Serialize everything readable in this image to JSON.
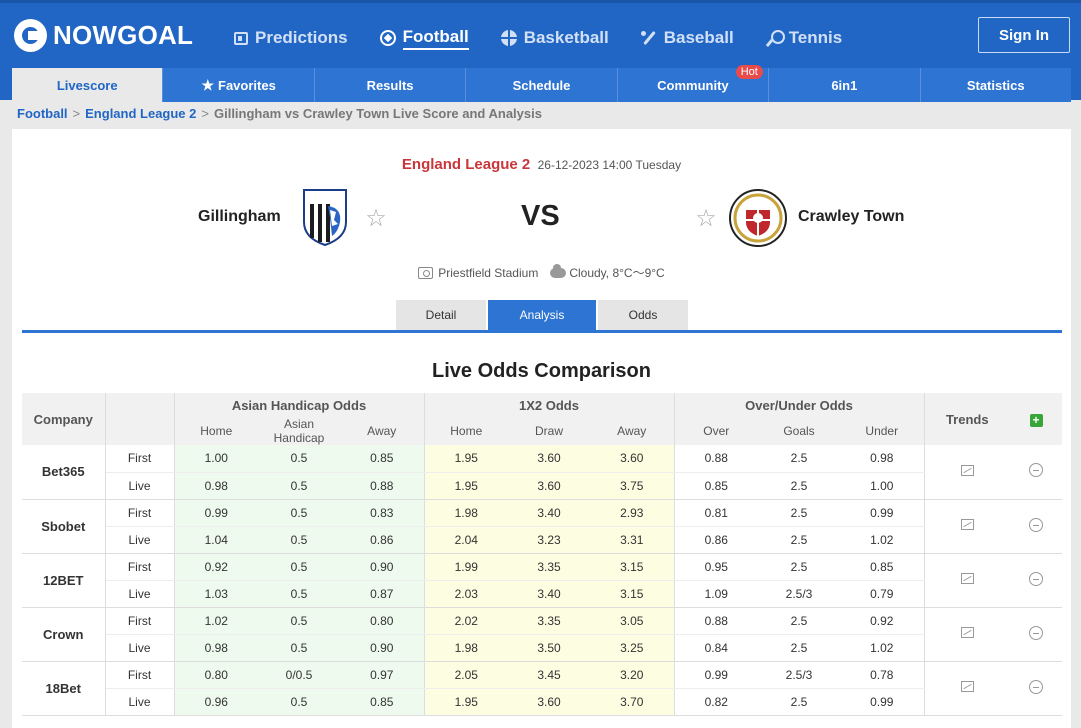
{
  "header": {
    "logo_text": "NOWGOAL",
    "nav": [
      {
        "label": "Predictions",
        "icon": "predictions-icon"
      },
      {
        "label": "Football",
        "icon": "football-icon",
        "active": true
      },
      {
        "label": "Basketball",
        "icon": "basketball-icon"
      },
      {
        "label": "Baseball",
        "icon": "baseball-icon"
      },
      {
        "label": "Tennis",
        "icon": "tennis-icon"
      }
    ],
    "sign_in": "Sign In"
  },
  "subnav": {
    "tabs": [
      "Livescore",
      "Favorites",
      "Results",
      "Schedule",
      "Community",
      "6in1",
      "Statistics"
    ],
    "hot_badge": "Hot"
  },
  "breadcrumb": {
    "items": [
      "Football",
      "England League 2"
    ],
    "current": "Gillingham vs Crawley Town Live Score and Analysis",
    "separator": ">"
  },
  "match": {
    "league": "England League 2",
    "datetime": "26-12-2023 14:00",
    "weekday": "Tuesday",
    "home": "Gillingham",
    "away": "Crawley Town",
    "vs": "VS",
    "venue": "Priestfield Stadium",
    "weather": "Cloudy, 8°C～9°C"
  },
  "detail_tabs": [
    "Detail",
    "Analysis",
    "Odds"
  ],
  "odds": {
    "title": "Live Odds Comparison",
    "headers": {
      "company": "Company",
      "asian": "Asian Handicap Odds",
      "x12": "1X2 Odds",
      "ou": "Over/Under Odds",
      "trends": "Trends",
      "add": "+",
      "asian_sub": [
        "Home",
        "Asian Handicap",
        "Away"
      ],
      "x12_sub": [
        "Home",
        "Draw",
        "Away"
      ],
      "ou_sub": [
        "Over",
        "Goals",
        "Under"
      ]
    },
    "rows": [
      {
        "company": "Bet365",
        "first": {
          "type": "First",
          "ah": [
            "1.00",
            "0.5",
            "0.85"
          ],
          "x12": [
            "1.95",
            "3.60",
            "3.60"
          ],
          "ou": [
            "0.88",
            "2.5",
            "0.98"
          ]
        },
        "live": {
          "type": "Live",
          "ah": [
            "0.98",
            "0.5",
            "0.88"
          ],
          "x12": [
            "1.95",
            "3.60",
            "3.75"
          ],
          "ou": [
            "0.85",
            "2.5",
            "1.00"
          ]
        }
      },
      {
        "company": "Sbobet",
        "first": {
          "type": "First",
          "ah": [
            "0.99",
            "0.5",
            "0.83"
          ],
          "x12": [
            "1.98",
            "3.40",
            "2.93"
          ],
          "ou": [
            "0.81",
            "2.5",
            "0.99"
          ]
        },
        "live": {
          "type": "Live",
          "ah": [
            "1.04",
            "0.5",
            "0.86"
          ],
          "x12": [
            "2.04",
            "3.23",
            "3.31"
          ],
          "ou": [
            "0.86",
            "2.5",
            "1.02"
          ]
        }
      },
      {
        "company": "12BET",
        "first": {
          "type": "First",
          "ah": [
            "0.92",
            "0.5",
            "0.90"
          ],
          "x12": [
            "1.99",
            "3.35",
            "3.15"
          ],
          "ou": [
            "0.95",
            "2.5",
            "0.85"
          ]
        },
        "live": {
          "type": "Live",
          "ah": [
            "1.03",
            "0.5",
            "0.87"
          ],
          "x12": [
            "2.03",
            "3.40",
            "3.15"
          ],
          "ou": [
            "1.09",
            "2.5/3",
            "0.79"
          ]
        }
      },
      {
        "company": "Crown",
        "first": {
          "type": "First",
          "ah": [
            "1.02",
            "0.5",
            "0.80"
          ],
          "x12": [
            "2.02",
            "3.35",
            "3.05"
          ],
          "ou": [
            "0.88",
            "2.5",
            "0.92"
          ]
        },
        "live": {
          "type": "Live",
          "ah": [
            "0.98",
            "0.5",
            "0.90"
          ],
          "x12": [
            "1.98",
            "3.50",
            "3.25"
          ],
          "ou": [
            "0.84",
            "2.5",
            "1.02"
          ]
        }
      },
      {
        "company": "18Bet",
        "first": {
          "type": "First",
          "ah": [
            "0.80",
            "0/0.5",
            "0.97"
          ],
          "x12": [
            "2.05",
            "3.45",
            "3.20"
          ],
          "ou": [
            "0.99",
            "2.5/3",
            "0.78"
          ]
        },
        "live": {
          "type": "Live",
          "ah": [
            "0.96",
            "0.5",
            "0.85"
          ],
          "x12": [
            "1.95",
            "3.60",
            "3.70"
          ],
          "ou": [
            "0.82",
            "2.5",
            "0.99"
          ]
        }
      }
    ]
  }
}
